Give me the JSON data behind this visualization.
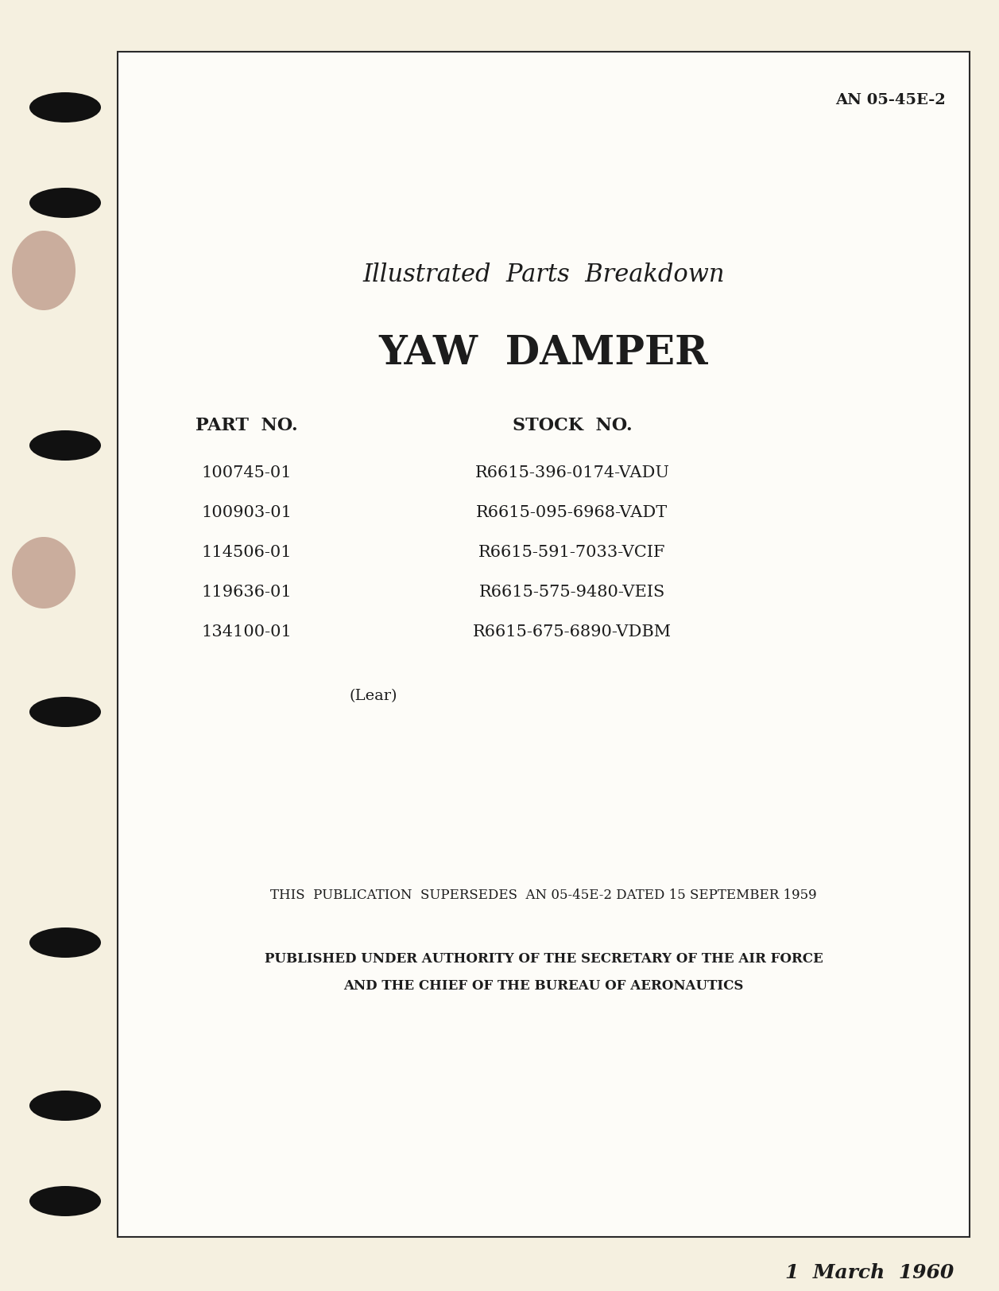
{
  "background_color": "#f5f0e0",
  "page_bg": "#fdfcf8",
  "border_color": "#2a2a2a",
  "border_linewidth": 1.5,
  "text_color": "#1c1c1c",
  "doc_number": "AN 05-45E-2",
  "title_line1": "Illustrated  Parts  Breakdown",
  "title_line2": "YAW  DAMPER",
  "part_no_header": "PART  NO.",
  "stock_no_header": "STOCK  NO.",
  "part_numbers": [
    "100745-01",
    "100903-01",
    "114506-01",
    "119636-01",
    "134100-01"
  ],
  "stock_numbers": [
    "R6615-396-0174-VADU",
    "R6615-095-6968-VADT",
    "R6615-591-7033-VCIF",
    "R6615-575-9480-VEIS",
    "R6615-675-6890-VDBM"
  ],
  "manufacturer": "(Lear)",
  "supersedes_text": "THIS  PUBLICATION  SUPERSEDES  AN 05-45E-2 DATED 15 SEPTEMBER 1959",
  "authority_line1": "PUBLISHED UNDER AUTHORITY OF THE SECRETARY OF THE AIR FORCE",
  "authority_line2": "AND THE CHIEF OF THE BUREAU OF AERONAUTICS",
  "date": "1  March  1960",
  "hole_color": "#111111",
  "binder_mark_color": "#7a3020"
}
